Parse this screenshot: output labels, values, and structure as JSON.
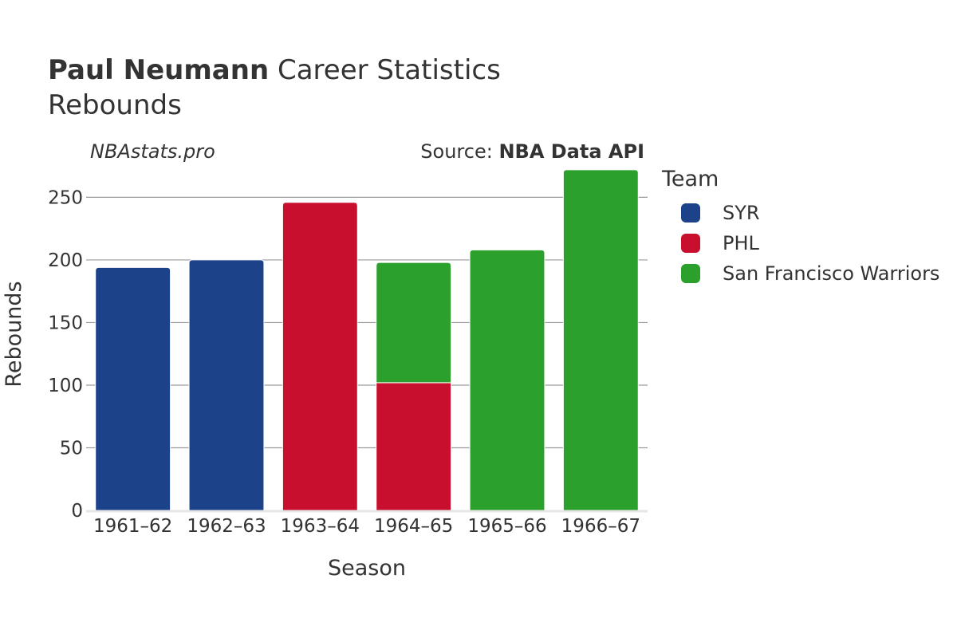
{
  "header": {
    "player_name": "Paul Neumann",
    "title_suffix": "Career Statistics",
    "subtitle": "Rebounds"
  },
  "watermark": "NBAstats.pro",
  "source": {
    "prefix": "Source: ",
    "name": "NBA Data API"
  },
  "legend": {
    "title": "Team",
    "items": [
      {
        "label": "SYR",
        "color": "#1c428a"
      },
      {
        "label": "PHL",
        "color": "#c8102e"
      },
      {
        "label": "San Francisco Warriors",
        "color": "#2ca02c"
      }
    ]
  },
  "chart_data": {
    "type": "bar",
    "stacked": true,
    "xlabel": "Season",
    "ylabel": "Rebounds",
    "ylim": [
      0,
      270
    ],
    "yticks": [
      0,
      50,
      100,
      150,
      200,
      250
    ],
    "grid": true,
    "legend_position": "right",
    "categories": [
      "1961–62",
      "1962–63",
      "1963–64",
      "1964–65",
      "1965–66",
      "1966–67"
    ],
    "series": [
      {
        "name": "SYR",
        "color": "#1c428a",
        "values": [
          194,
          200,
          0,
          0,
          0,
          0
        ]
      },
      {
        "name": "PHL",
        "color": "#c8102e",
        "values": [
          0,
          0,
          246,
          102,
          0,
          0
        ]
      },
      {
        "name": "San Francisco Warriors",
        "color": "#2ca02c",
        "values": [
          0,
          0,
          0,
          96,
          208,
          272
        ]
      }
    ]
  }
}
